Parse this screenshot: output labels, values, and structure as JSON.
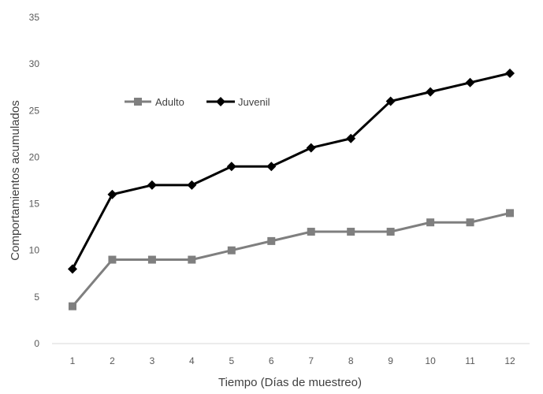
{
  "chart_data": {
    "type": "line",
    "title": "",
    "xlabel": "Tiempo (Días de muestreo)",
    "ylabel": "Comportamientos acumulados",
    "x": [
      1,
      2,
      3,
      4,
      5,
      6,
      7,
      8,
      9,
      10,
      11,
      12
    ],
    "ylim": [
      0,
      35
    ],
    "yticks": [
      0,
      5,
      10,
      15,
      20,
      25,
      30,
      35
    ],
    "grid": false,
    "legend_position": "top-left inside",
    "series": [
      {
        "name": "Adulto",
        "color": "#7f7f7f",
        "marker": "square",
        "values": [
          4,
          9,
          9,
          9,
          10,
          11,
          12,
          12,
          12,
          13,
          13,
          14
        ]
      },
      {
        "name": "Juvenil",
        "color": "#000000",
        "marker": "diamond",
        "values": [
          8,
          16,
          17,
          17,
          19,
          19,
          21,
          22,
          26,
          27,
          28,
          29
        ]
      }
    ]
  }
}
